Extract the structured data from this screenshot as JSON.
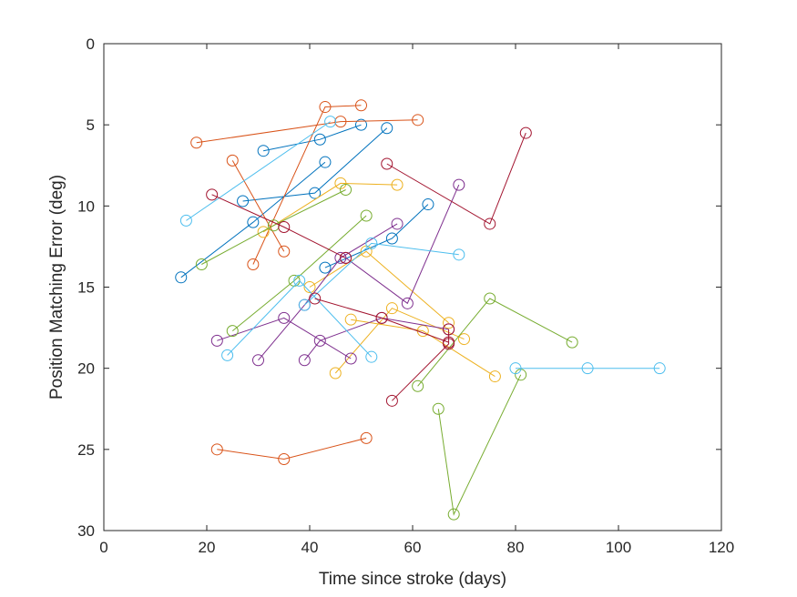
{
  "chart_data": {
    "type": "line",
    "title": "",
    "xlabel": "Time since stroke (days)",
    "ylabel": "Position Matching Error (deg)",
    "xlim": [
      0,
      120
    ],
    "ylim": [
      0,
      30
    ],
    "y_reversed": true,
    "grid": false,
    "legend": "none",
    "marker": "open-circle",
    "xticks": [
      0,
      20,
      40,
      60,
      80,
      100,
      120
    ],
    "yticks": [
      0,
      5,
      10,
      15,
      20,
      25,
      30
    ],
    "series": [
      {
        "color": "#0072BD",
        "points": [
          [
            15,
            14.4
          ],
          [
            29,
            11.0
          ],
          [
            43,
            7.3
          ]
        ]
      },
      {
        "color": "#0072BD",
        "points": [
          [
            27,
            9.7
          ],
          [
            41,
            9.2
          ],
          [
            55,
            5.2
          ]
        ]
      },
      {
        "color": "#0072BD",
        "points": [
          [
            31,
            6.6
          ],
          [
            42,
            5.9
          ],
          [
            50,
            5.0
          ]
        ]
      },
      {
        "color": "#0072BD",
        "points": [
          [
            43,
            13.8
          ],
          [
            56,
            12.0
          ],
          [
            63,
            9.9
          ]
        ]
      },
      {
        "color": "#D95319",
        "points": [
          [
            18,
            6.1
          ],
          [
            46,
            4.8
          ],
          [
            61,
            4.7
          ]
        ]
      },
      {
        "color": "#D95319",
        "points": [
          [
            25,
            7.2
          ],
          [
            35,
            12.8
          ]
        ]
      },
      {
        "color": "#D95319",
        "points": [
          [
            29,
            13.6
          ],
          [
            43,
            3.9
          ],
          [
            50,
            3.8
          ]
        ]
      },
      {
        "color": "#D95319",
        "points": [
          [
            22,
            25.0
          ],
          [
            35,
            25.6
          ],
          [
            51,
            24.3
          ]
        ]
      },
      {
        "color": "#EDB120",
        "points": [
          [
            31,
            11.6
          ],
          [
            46,
            8.6
          ],
          [
            57,
            8.7
          ]
        ]
      },
      {
        "color": "#EDB120",
        "points": [
          [
            40,
            15.0
          ],
          [
            51,
            12.8
          ],
          [
            67,
            17.2
          ]
        ]
      },
      {
        "color": "#EDB120",
        "points": [
          [
            48,
            17.0
          ],
          [
            62,
            17.7
          ],
          [
            76,
            20.5
          ]
        ]
      },
      {
        "color": "#EDB120",
        "points": [
          [
            45,
            20.3
          ],
          [
            56,
            16.3
          ],
          [
            70,
            18.2
          ]
        ]
      },
      {
        "color": "#7E2F8E",
        "points": [
          [
            22,
            18.3
          ],
          [
            35,
            16.9
          ],
          [
            48,
            19.4
          ]
        ]
      },
      {
        "color": "#7E2F8E",
        "points": [
          [
            30,
            19.5
          ],
          [
            39,
            16.1
          ],
          [
            46,
            13.2
          ],
          [
            57,
            11.1
          ]
        ]
      },
      {
        "color": "#7E2F8E",
        "points": [
          [
            39,
            19.5
          ],
          [
            42,
            18.3
          ],
          [
            54,
            16.9
          ],
          [
            67,
            17.6
          ]
        ]
      },
      {
        "color": "#7E2F8E",
        "points": [
          [
            47,
            13.2
          ],
          [
            59,
            16.0
          ],
          [
            69,
            8.7
          ]
        ]
      },
      {
        "color": "#77AC30",
        "points": [
          [
            19,
            13.6
          ],
          [
            33,
            11.2
          ],
          [
            47,
            9.0
          ]
        ]
      },
      {
        "color": "#77AC30",
        "points": [
          [
            25,
            17.7
          ],
          [
            37,
            14.6
          ],
          [
            51,
            10.6
          ]
        ]
      },
      {
        "color": "#77AC30",
        "points": [
          [
            61,
            21.1
          ],
          [
            75,
            15.7
          ],
          [
            91,
            18.4
          ]
        ]
      },
      {
        "color": "#77AC30",
        "points": [
          [
            65,
            22.5
          ],
          [
            68,
            29.0
          ],
          [
            81,
            20.4
          ]
        ]
      },
      {
        "color": "#4DBEEE",
        "points": [
          [
            16,
            10.9
          ],
          [
            44,
            4.8
          ]
        ]
      },
      {
        "color": "#4DBEEE",
        "points": [
          [
            24,
            19.2
          ],
          [
            38,
            14.6
          ],
          [
            52,
            19.3
          ]
        ]
      },
      {
        "color": "#4DBEEE",
        "points": [
          [
            39,
            16.1
          ],
          [
            52,
            12.3
          ],
          [
            69,
            13.0
          ]
        ]
      },
      {
        "color": "#4DBEEE",
        "points": [
          [
            80,
            20.0
          ],
          [
            94,
            20.0
          ],
          [
            108,
            20.0
          ]
        ]
      },
      {
        "color": "#A2142F",
        "points": [
          [
            21,
            9.3
          ],
          [
            35,
            11.3
          ],
          [
            47,
            13.2
          ]
        ]
      },
      {
        "color": "#A2142F",
        "points": [
          [
            55,
            7.4
          ],
          [
            75,
            11.1
          ],
          [
            82,
            5.5
          ]
        ]
      },
      {
        "color": "#A2142F",
        "points": [
          [
            41,
            15.7
          ],
          [
            54,
            16.9
          ],
          [
            67,
            18.4
          ]
        ]
      },
      {
        "color": "#A2142F",
        "points": [
          [
            56,
            22.0
          ],
          [
            67,
            18.5
          ],
          [
            67,
            17.6
          ]
        ]
      }
    ]
  }
}
